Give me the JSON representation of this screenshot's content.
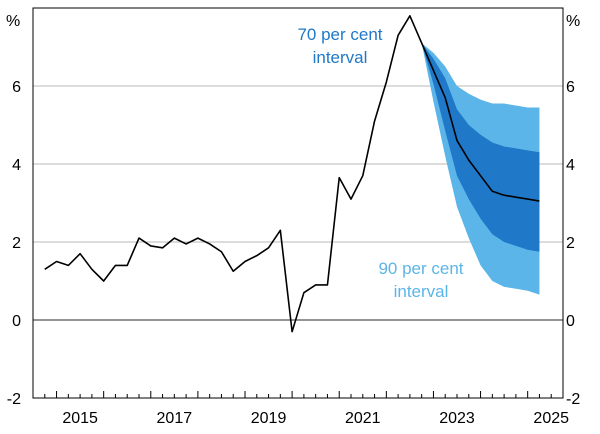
{
  "chart_data": {
    "type": "line",
    "unit_left": "%",
    "unit_right": "%",
    "ylim": [
      -2,
      8
    ],
    "yticks": [
      -2,
      0,
      2,
      4,
      6
    ],
    "xlim": [
      2014.5,
      2025.75
    ],
    "xticks": [
      {
        "year": 2015,
        "label": "2015"
      },
      {
        "year": 2017,
        "label": "2017"
      },
      {
        "year": 2019,
        "label": "2019"
      },
      {
        "year": 2021,
        "label": "2021"
      },
      {
        "year": 2023,
        "label": "2023"
      },
      {
        "year": 2025,
        "label": "2025"
      }
    ],
    "grid": true,
    "series": [
      {
        "values": [
          [
            2014.75,
            1.3
          ],
          [
            2015.0,
            1.5
          ],
          [
            2015.25,
            1.4
          ],
          [
            2015.5,
            1.7
          ],
          [
            2015.75,
            1.3
          ],
          [
            2016.0,
            1.0
          ],
          [
            2016.25,
            1.4
          ],
          [
            2016.5,
            1.4
          ],
          [
            2016.75,
            2.1
          ],
          [
            2017.0,
            1.9
          ],
          [
            2017.25,
            1.85
          ],
          [
            2017.5,
            2.1
          ],
          [
            2017.75,
            1.95
          ],
          [
            2018.0,
            2.1
          ],
          [
            2018.25,
            1.95
          ],
          [
            2018.5,
            1.75
          ],
          [
            2018.75,
            1.25
          ],
          [
            2019.0,
            1.5
          ],
          [
            2019.25,
            1.65
          ],
          [
            2019.5,
            1.85
          ],
          [
            2019.75,
            2.3
          ],
          [
            2020.0,
            -0.3
          ],
          [
            2020.25,
            0.7
          ],
          [
            2020.5,
            0.9
          ],
          [
            2020.75,
            0.9
          ],
          [
            2021.0,
            3.65
          ],
          [
            2021.25,
            3.1
          ],
          [
            2021.5,
            3.7
          ],
          [
            2021.75,
            5.1
          ],
          [
            2022.0,
            6.1
          ],
          [
            2022.25,
            7.3
          ],
          [
            2022.5,
            7.8
          ],
          [
            2022.75,
            7.1
          ],
          [
            2023.0,
            6.4
          ],
          [
            2023.25,
            5.7
          ],
          [
            2023.5,
            4.6
          ],
          [
            2023.75,
            4.1
          ],
          [
            2024.0,
            3.7
          ],
          [
            2024.25,
            3.3
          ],
          [
            2024.5,
            3.2
          ],
          [
            2024.75,
            3.15
          ],
          [
            2025.0,
            3.1
          ],
          [
            2025.25,
            3.05
          ]
        ]
      }
    ],
    "intervals": [
      {
        "label": "90 per cent interval",
        "color": "#5cb5e8",
        "x": [
          2022.75,
          2023.0,
          2023.25,
          2023.5,
          2023.75,
          2024.0,
          2024.25,
          2024.5,
          2024.75,
          2025.0,
          2025.25
        ],
        "upper": [
          7.1,
          6.85,
          6.5,
          6.0,
          5.8,
          5.65,
          5.55,
          5.55,
          5.5,
          5.45,
          5.45
        ],
        "lower": [
          7.1,
          5.6,
          4.2,
          2.9,
          2.1,
          1.4,
          1.0,
          0.85,
          0.8,
          0.75,
          0.65
        ]
      },
      {
        "label": "70 per cent interval",
        "color": "#1f78c8",
        "x": [
          2022.75,
          2023.0,
          2023.25,
          2023.5,
          2023.75,
          2024.0,
          2024.25,
          2024.5,
          2024.75,
          2025.0,
          2025.25
        ],
        "upper": [
          7.1,
          6.7,
          6.2,
          5.4,
          5.0,
          4.75,
          4.55,
          4.45,
          4.4,
          4.35,
          4.3
        ],
        "lower": [
          7.1,
          6.05,
          4.85,
          3.7,
          3.1,
          2.6,
          2.2,
          2.0,
          1.9,
          1.8,
          1.75
        ]
      }
    ],
    "annotations": [
      {
        "lines": [
          "70 per cent",
          "interval"
        ],
        "color": "#1f78c8"
      },
      {
        "lines": [
          "90 per cent",
          "interval"
        ],
        "color": "#5cb5e8"
      }
    ],
    "line_color": "#000000"
  }
}
